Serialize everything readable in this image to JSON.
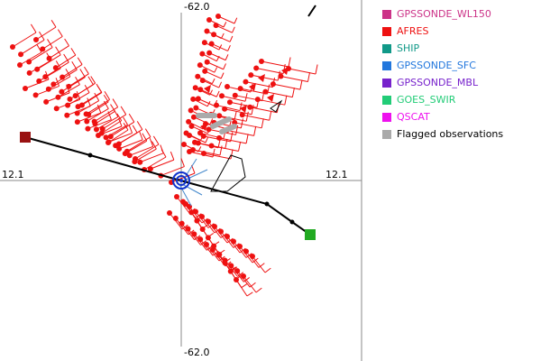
{
  "axes": {
    "top": "-62.0",
    "bottom": "-62.0",
    "left": "12.1",
    "right": "12.1"
  },
  "legend": [
    {
      "label": "GPSSONDE_WL150",
      "color": "#cc3388"
    },
    {
      "label": "AFRES",
      "color": "#ee1111"
    },
    {
      "label": "SHIP",
      "color": "#119988"
    },
    {
      "label": "GPSSONDE_SFC",
      "color": "#2277dd"
    },
    {
      "label": "GPSSONDE_MBL",
      "color": "#7722cc"
    },
    {
      "label": "GOES_SWIR",
      "color": "#22cc77"
    },
    {
      "label": "QSCAT",
      "color": "#ee11ee"
    },
    {
      "label": "Flagged observations",
      "color": "#aaaaaa",
      "text_color": "#000000"
    }
  ],
  "colors": {
    "obs": "#ee1111",
    "track": "#000000",
    "start_marker": "#991111",
    "end_marker": "#22aa22",
    "center": "#1133cc",
    "sonde": "#4488cc"
  }
}
